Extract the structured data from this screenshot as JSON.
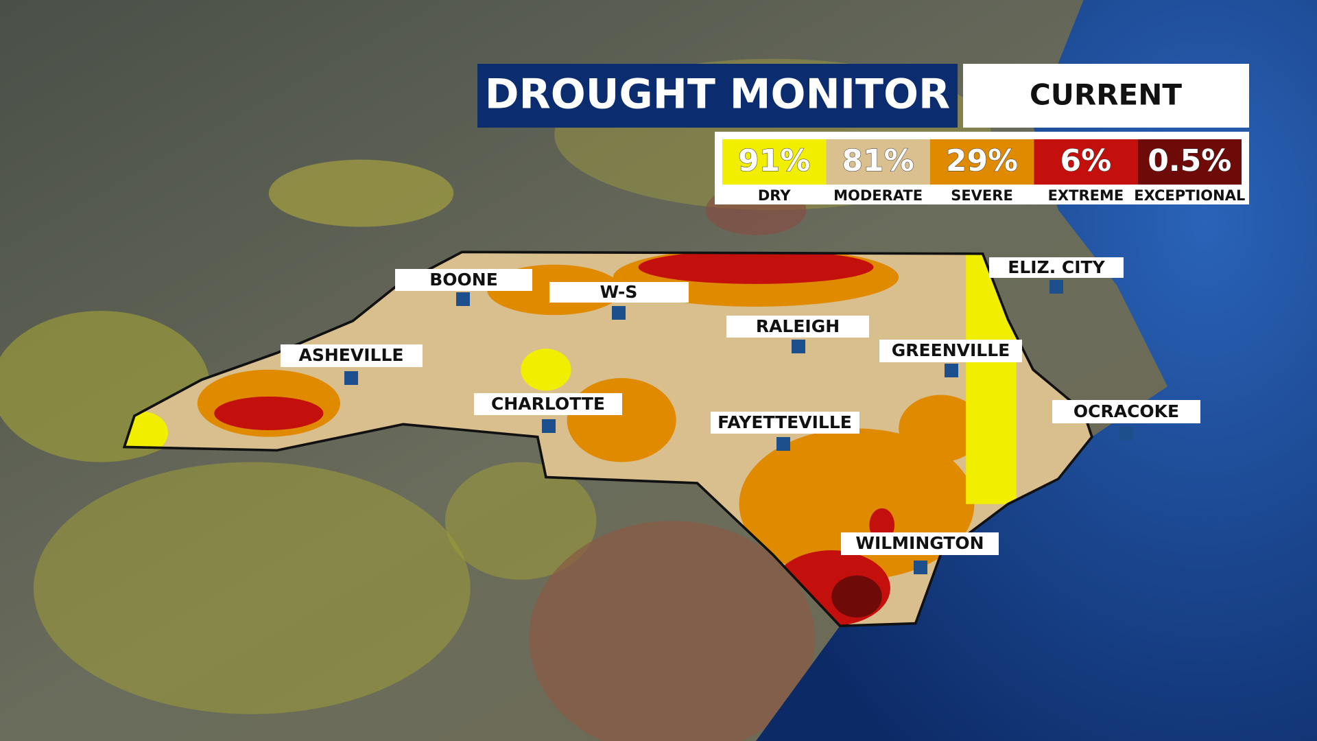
{
  "header": {
    "title": "DROUGHT MONITOR",
    "period": "CURRENT"
  },
  "legend": [
    {
      "percent": "91%",
      "label": "DRY",
      "color": "#f2ee00"
    },
    {
      "percent": "81%",
      "label": "MODERATE",
      "color": "#d9c08e"
    },
    {
      "percent": "29%",
      "label": "SEVERE",
      "color": "#e08a00"
    },
    {
      "percent": "6%",
      "label": "EXTREME",
      "color": "#c4100c"
    },
    {
      "percent": "0.5%",
      "label": "EXCEPTIONAL",
      "color": "#6e0a08"
    }
  ],
  "cities": [
    "BOONE",
    "W-S",
    "RALEIGH",
    "ELIZ. CITY",
    "ASHEVILLE",
    "GREENVILLE",
    "CHARLOTTE",
    "OCRACOKE",
    "FAYETTEVILLE",
    "WILMINGTON"
  ]
}
